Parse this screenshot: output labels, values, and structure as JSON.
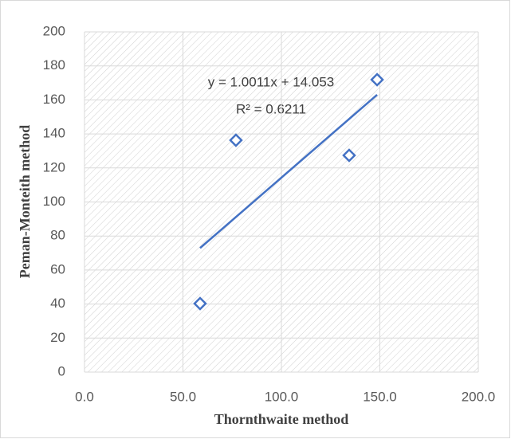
{
  "chart_data": {
    "type": "scatter",
    "x_label": "Thornthwaite method",
    "y_label": "Peman-Monteith method",
    "series": [
      {
        "name": "Peman-Monteith method",
        "color": "#4472c4",
        "x": [
          58.7,
          76.9,
          134.4,
          148.6
        ],
        "values": [
          40.3,
          136.3,
          127.4,
          171.9
        ]
      }
    ],
    "trendline": true,
    "annotations": [
      "y = 1.0011x + 14.053",
      "R² = 0.6211"
    ],
    "xlim": [
      0,
      200
    ],
    "xticks": [
      {
        "value": 0,
        "label": "0.0"
      },
      {
        "value": 50,
        "label": "50.0"
      },
      {
        "value": 100,
        "label": "100.0"
      },
      {
        "value": 150,
        "label": "150.0"
      },
      {
        "value": 200,
        "label": "200.0"
      }
    ],
    "ylim": [
      0,
      200
    ],
    "yticks": [
      0,
      20,
      40,
      60,
      80,
      100,
      120,
      140,
      160,
      180,
      200
    ],
    "grid": true
  }
}
